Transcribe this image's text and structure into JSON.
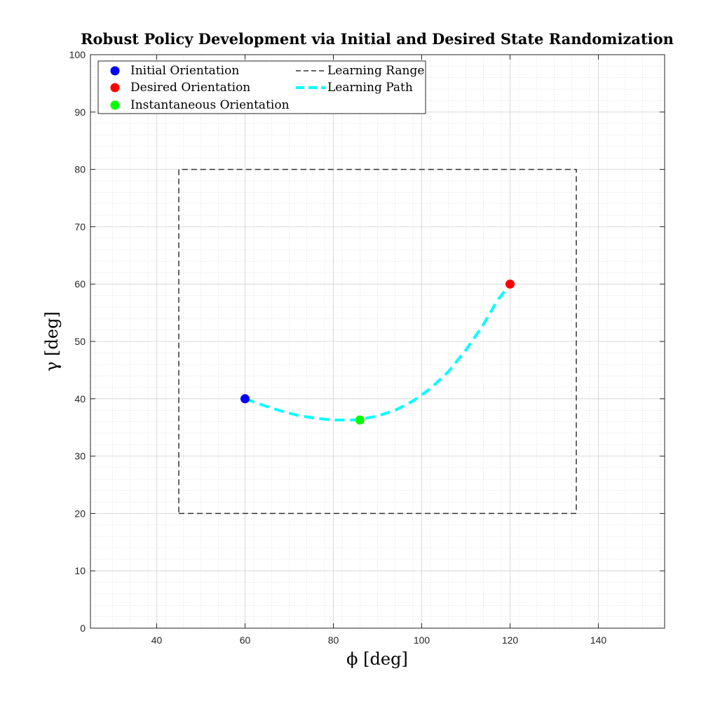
{
  "chart_data": {
    "type": "line",
    "title": "Robust Policy Development via Initial and Desired State Randomization",
    "xlabel": "ϕ [deg]",
    "ylabel": "γ [deg]",
    "xlim": [
      25,
      155
    ],
    "ylim": [
      0,
      100
    ],
    "xticks": [
      40,
      60,
      80,
      100,
      120,
      140
    ],
    "yticks": [
      0,
      10,
      20,
      30,
      40,
      50,
      60,
      70,
      80,
      90,
      100
    ],
    "grid": true,
    "minor_grid": true,
    "legend_position": "top-left",
    "learning_range": {
      "name": "Learning Range",
      "x": [
        45,
        135,
        135,
        45,
        45
      ],
      "y": [
        20,
        20,
        80,
        80,
        20
      ],
      "color": "#333333",
      "style": "dashed"
    },
    "learning_path": {
      "name": "Learning Path",
      "color": "#00FFFF",
      "style": "dashed",
      "x": [
        60,
        64,
        68,
        72,
        76,
        80,
        84,
        86,
        90,
        94,
        98,
        102,
        106,
        110,
        114,
        117,
        119,
        120
      ],
      "y": [
        40,
        38.9,
        37.9,
        37.1,
        36.6,
        36.3,
        36.3,
        36.4,
        37.0,
        38.0,
        39.6,
        41.8,
        44.7,
        48.5,
        53.0,
        57.0,
        59.0,
        60
      ]
    },
    "points": [
      {
        "name": "Initial Orientation",
        "x": 60,
        "y": 40,
        "color": "#0000FF"
      },
      {
        "name": "Desired Orientation",
        "x": 120,
        "y": 60,
        "color": "#FF0000"
      },
      {
        "name": "Instantaneous Orientation",
        "x": 86,
        "y": 36.3,
        "color": "#00FF00"
      }
    ]
  }
}
